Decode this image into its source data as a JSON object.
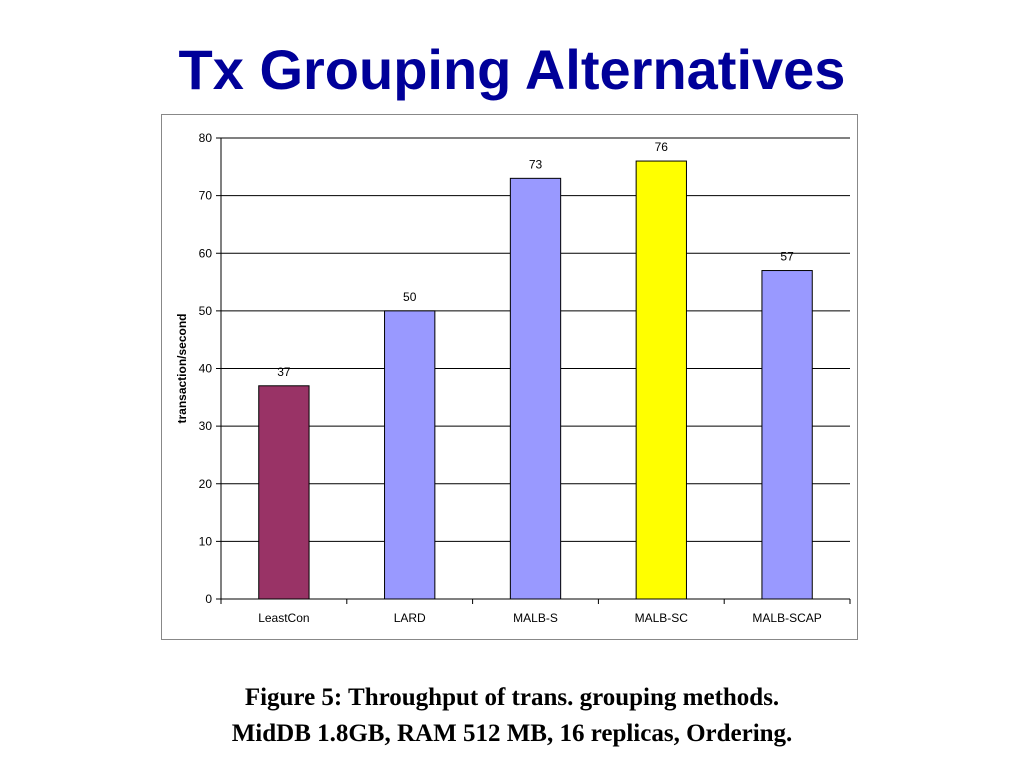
{
  "slide": {
    "title": "Tx Grouping Alternatives",
    "caption_line1": "Figure 5: Throughput of trans. grouping methods.",
    "caption_line2": "MidDB 1.8GB, RAM 512 MB, 16 replicas, Ordering."
  },
  "chart_data": {
    "type": "bar",
    "title": "",
    "xlabel": "",
    "ylabel": "transaction/second",
    "categories": [
      "LeastCon",
      "LARD",
      "MALB-S",
      "MALB-SC",
      "MALB-SCAP"
    ],
    "values": [
      37,
      50,
      73,
      76,
      57
    ],
    "bar_colors": [
      "#993366",
      "#9999ff",
      "#9999ff",
      "#ffff00",
      "#9999ff"
    ],
    "ylim": [
      0,
      80
    ],
    "yticks": [
      0,
      10,
      20,
      30,
      40,
      50,
      60,
      70,
      80
    ],
    "grid": true,
    "legend": "none",
    "data_labels": true
  }
}
